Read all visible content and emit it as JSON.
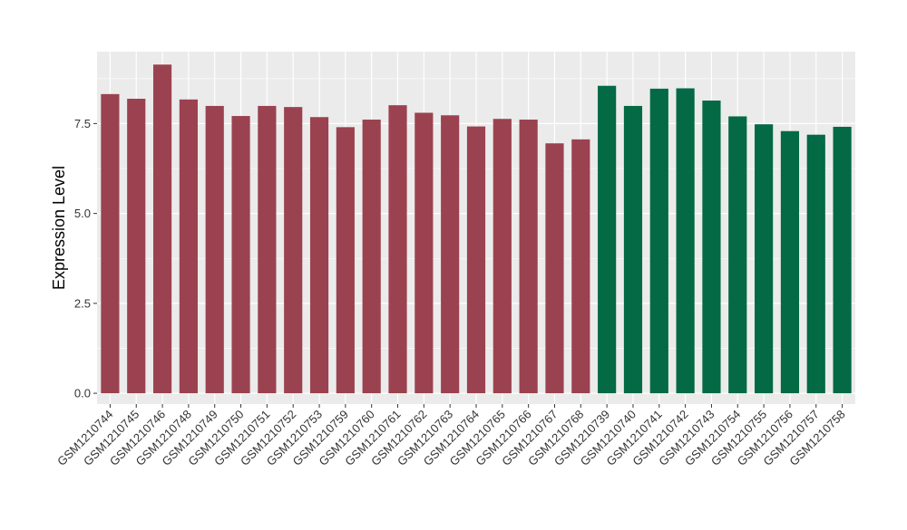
{
  "chart_data": {
    "type": "bar",
    "title": "",
    "xlabel": "",
    "ylabel": "Expression Level",
    "ylim": [
      -0.3,
      9.5
    ],
    "yticks": [
      0.0,
      2.5,
      5.0,
      7.5
    ],
    "ytick_labels": [
      "0.0",
      "2.5",
      "5.0",
      "7.5"
    ],
    "grid": true,
    "panel_background": "#ebebeb",
    "grid_color": "#ffffff",
    "categories": [
      "GSM1210744",
      "GSM1210745",
      "GSM1210746",
      "GSM1210748",
      "GSM1210749",
      "GSM1210750",
      "GSM1210751",
      "GSM1210752",
      "GSM1210753",
      "GSM1210759",
      "GSM1210760",
      "GSM1210761",
      "GSM1210762",
      "GSM1210763",
      "GSM1210764",
      "GSM1210765",
      "GSM1210766",
      "GSM1210767",
      "GSM1210768",
      "GSM1210739",
      "GSM1210740",
      "GSM1210741",
      "GSM1210742",
      "GSM1210743",
      "GSM1210754",
      "GSM1210755",
      "GSM1210756",
      "GSM1210757",
      "GSM1210758"
    ],
    "values": [
      8.32,
      8.19,
      9.14,
      8.17,
      7.99,
      7.71,
      7.99,
      7.96,
      7.68,
      7.4,
      7.61,
      8.01,
      7.8,
      7.73,
      7.42,
      7.63,
      7.61,
      6.95,
      7.06,
      8.55,
      7.99,
      8.47,
      8.48,
      8.14,
      7.7,
      7.48,
      7.29,
      7.19,
      7.41
    ],
    "groups": [
      "red",
      "red",
      "red",
      "red",
      "red",
      "red",
      "red",
      "red",
      "red",
      "red",
      "red",
      "red",
      "red",
      "red",
      "red",
      "red",
      "red",
      "red",
      "red",
      "green",
      "green",
      "green",
      "green",
      "green",
      "green",
      "green",
      "green",
      "green",
      "green"
    ],
    "colors": {
      "red": "#9b4250",
      "green": "#046945"
    }
  }
}
